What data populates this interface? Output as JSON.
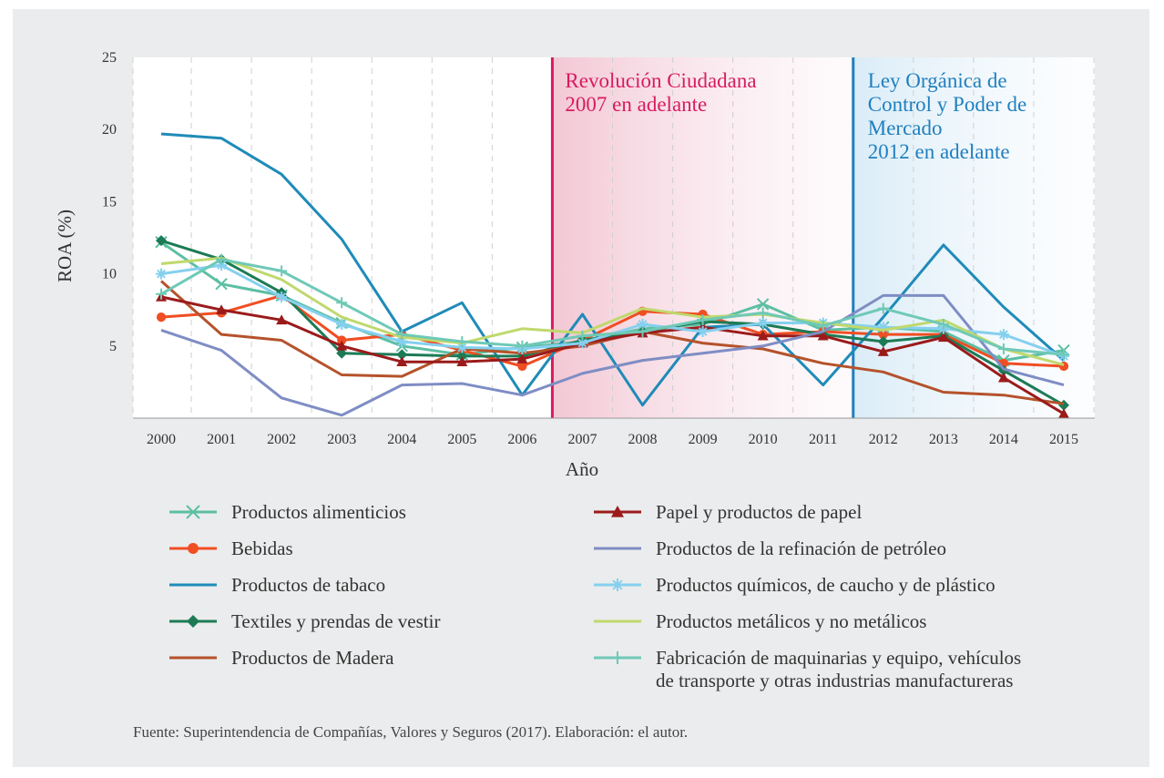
{
  "chart_data": {
    "type": "line",
    "xlabel": "Año",
    "ylabel": "ROA (%)",
    "x": [
      "2000",
      "2001",
      "2002",
      "2003",
      "2004",
      "2005",
      "2006",
      "2007",
      "2008",
      "2009",
      "2010",
      "2011",
      "2012",
      "2013",
      "2014",
      "2015"
    ],
    "ylim": [
      0,
      25
    ],
    "yticks": [
      5,
      10,
      15,
      20,
      25
    ],
    "grid": "vertical dashed",
    "annotations": [
      {
        "text_lines": [
          "Revolución Ciudadana",
          "2007 en adelante"
        ],
        "color": "#d81b60",
        "at_x": "2006.5"
      },
      {
        "text_lines": [
          "Ley Orgánica de",
          "Control y Poder de",
          "Mercado",
          "2012 en adelante"
        ],
        "color": "#1f7fbf",
        "at_x": "2011.5"
      }
    ],
    "series": [
      {
        "name": "Productos alimenticios",
        "color": "#5cbfa3",
        "marker": "x",
        "values": [
          12.2,
          9.3,
          8.5,
          6.6,
          5.0,
          4.4,
          4.9,
          5.3,
          6.2,
          6.5,
          7.9,
          6.1,
          6.3,
          6.0,
          4.0,
          4.7
        ]
      },
      {
        "name": "Bebidas",
        "color": "#f04e23",
        "marker": "circle",
        "values": [
          7.0,
          7.3,
          8.5,
          5.4,
          5.8,
          4.7,
          3.6,
          5.4,
          7.4,
          7.2,
          5.8,
          6.0,
          5.8,
          5.8,
          3.8,
          3.6
        ]
      },
      {
        "name": "Productos de tabaco",
        "color": "#1f8bb8",
        "marker": "none",
        "values": [
          19.7,
          19.4,
          16.9,
          12.4,
          6.0,
          8.0,
          1.6,
          7.2,
          0.9,
          6.3,
          6.5,
          2.3,
          7.0,
          12.0,
          7.7,
          4.0
        ]
      },
      {
        "name": "Textiles y prendas de vestir",
        "color": "#1c7b55",
        "marker": "diamond",
        "values": [
          12.3,
          11.0,
          8.7,
          4.5,
          4.4,
          4.3,
          4.3,
          5.4,
          6.0,
          6.7,
          6.5,
          5.8,
          5.3,
          5.7,
          3.3,
          0.9
        ]
      },
      {
        "name": "Productos de Madera",
        "color": "#b5522b",
        "marker": "none",
        "values": [
          9.5,
          5.8,
          5.4,
          3.0,
          2.9,
          4.8,
          4.5,
          5.0,
          6.0,
          5.2,
          4.8,
          3.8,
          3.2,
          1.8,
          1.6,
          1.0
        ]
      },
      {
        "name": "Papel y productos de papel",
        "color": "#9b1b1b",
        "marker": "triangle",
        "values": [
          8.4,
          7.5,
          6.8,
          5.0,
          3.9,
          3.9,
          4.1,
          5.2,
          5.9,
          6.3,
          5.7,
          5.7,
          4.6,
          5.6,
          2.8,
          0.3
        ]
      },
      {
        "name": "Productos de la refinación de petróleo",
        "color": "#7f8dc4",
        "marker": "none",
        "values": [
          6.1,
          4.7,
          1.4,
          0.2,
          2.3,
          2.4,
          1.6,
          3.1,
          4.0,
          4.5,
          5.0,
          6.0,
          8.5,
          8.5,
          3.4,
          2.3
        ]
      },
      {
        "name": "Productos químicos, de caucho y de plástico",
        "color": "#85d0ef",
        "marker": "asterisk",
        "values": [
          10.0,
          10.6,
          8.4,
          6.5,
          5.3,
          4.9,
          4.8,
          5.2,
          6.5,
          6.0,
          6.6,
          6.6,
          6.3,
          6.2,
          5.8,
          4.3
        ]
      },
      {
        "name": "Productos metálicos y no metálicos",
        "color": "#bfd96d",
        "marker": "none",
        "values": [
          10.7,
          11.1,
          9.6,
          7.0,
          5.6,
          5.2,
          6.2,
          5.9,
          7.6,
          7.0,
          7.2,
          6.6,
          6.1,
          6.8,
          4.8,
          3.7
        ]
      },
      {
        "name": "Fabricación de maquinarias y equipo, vehículos de transporte y otras industrias manufactureras",
        "color": "#6fc9b7",
        "marker": "plus",
        "values": [
          8.6,
          11.0,
          10.2,
          8.0,
          5.8,
          5.3,
          5.0,
          5.7,
          6.0,
          6.8,
          7.3,
          6.4,
          7.6,
          6.5,
          4.8,
          4.4
        ]
      }
    ]
  },
  "legend": {
    "left": [
      {
        "label": "Productos alimenticios",
        "series": 0
      },
      {
        "label": "Bebidas",
        "series": 1
      },
      {
        "label": "Productos de tabaco",
        "series": 2
      },
      {
        "label": "Textiles y prendas de vestir",
        "series": 3
      },
      {
        "label": "Productos de Madera",
        "series": 4
      }
    ],
    "right": [
      {
        "label": "Papel y productos de papel",
        "series": 5
      },
      {
        "label": "Productos de la refinación de petróleo",
        "series": 6
      },
      {
        "label": "Productos químicos, de caucho y de plástico",
        "series": 7
      },
      {
        "label": "Productos metálicos y no metálicos",
        "series": 8
      },
      {
        "label": "Fabricación de maquinarias y equipo, vehículos",
        "label2": "de transporte y otras industrias manufactureras",
        "series": 9
      }
    ]
  },
  "source": "Fuente: Superintendencia de Compañías, Valores y Seguros (2017). Elaboración: el autor."
}
